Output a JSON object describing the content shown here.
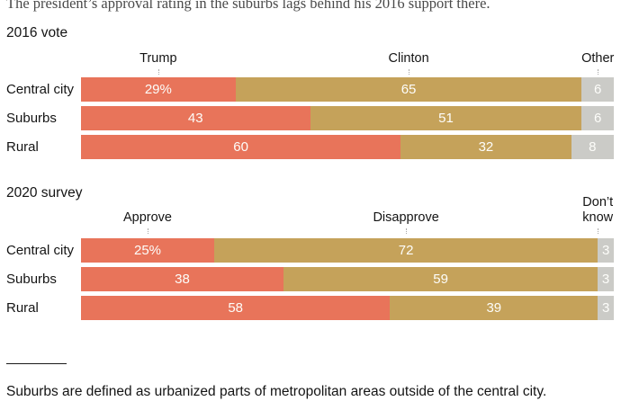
{
  "page": {
    "title": "The president’s approval rating in the suburbs lags behind his 2016 support there.",
    "footnote": "Suburbs are defined as urbanized parts of metropolitan areas outside of the central city."
  },
  "colors": {
    "segment_red": "#e8745a",
    "segment_tan": "#c5a25a",
    "segment_gray": "#cbcbc7",
    "text_dark": "#141414",
    "title_gray": "#4a4a4a",
    "tick_gray": "#a9a9a9",
    "value_label": "#ffffff"
  },
  "chart_data": [
    {
      "type": "bar",
      "stacked": true,
      "orientation": "horizontal",
      "title": "2016 vote",
      "xlim": [
        0,
        100
      ],
      "legend_position": "top",
      "categories": [
        "Central city",
        "Suburbs",
        "Rural"
      ],
      "series": [
        {
          "name": "Trump",
          "color": "#e8745a",
          "values": [
            29,
            43,
            60
          ],
          "label_center_pct": 14.5
        },
        {
          "name": "Clinton",
          "color": "#c5a25a",
          "values": [
            65,
            51,
            32
          ],
          "label_center_pct": 61.5
        },
        {
          "name": "Other",
          "color": "#cbcbc7",
          "values": [
            6,
            6,
            8
          ],
          "label_center_pct": 97
        }
      ],
      "bar_labels": [
        [
          "29%",
          "65",
          "6"
        ],
        [
          "43",
          "51",
          "6"
        ],
        [
          "60",
          "32",
          "8"
        ]
      ]
    },
    {
      "type": "bar",
      "stacked": true,
      "orientation": "horizontal",
      "title": "2020 survey",
      "xlim": [
        0,
        100
      ],
      "legend_position": "top",
      "categories": [
        "Central city",
        "Suburbs",
        "Rural"
      ],
      "series": [
        {
          "name": "Approve",
          "color": "#e8745a",
          "values": [
            25,
            38,
            58
          ],
          "label_center_pct": 12.5
        },
        {
          "name": "Disapprove",
          "color": "#c5a25a",
          "values": [
            72,
            59,
            39
          ],
          "label_center_pct": 61
        },
        {
          "name": "Don’t\nknow",
          "color": "#cbcbc7",
          "values": [
            3,
            3,
            3
          ],
          "label_center_pct": 97
        }
      ],
      "bar_labels": [
        [
          "25%",
          "72",
          "3"
        ],
        [
          "38",
          "59",
          "3"
        ],
        [
          "58",
          "39",
          "3"
        ]
      ]
    }
  ]
}
